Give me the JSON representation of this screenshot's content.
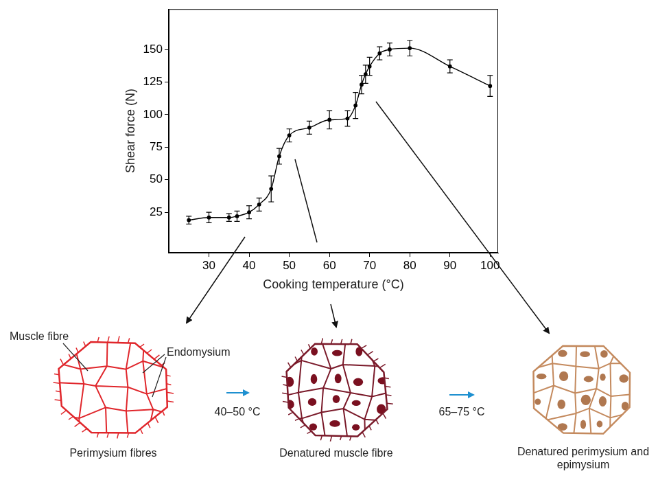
{
  "chart_data": {
    "type": "line",
    "x_label": "Cooking temperature (°C)",
    "y_label": "Shear force (N)",
    "x": [
      25,
      30,
      35,
      37,
      40,
      42.5,
      45.5,
      47.5,
      50,
      55,
      60,
      64.5,
      66.5,
      68,
      69,
      70,
      72.5,
      75,
      80,
      90,
      100
    ],
    "values": [
      19,
      21,
      21,
      22,
      25,
      31,
      43,
      68,
      84,
      90,
      96,
      97,
      107,
      123,
      131,
      137,
      147,
      150,
      151,
      137,
      122
    ],
    "errors": [
      3,
      4,
      3,
      4,
      5,
      5,
      10,
      6,
      5,
      5,
      7,
      6,
      10,
      7,
      7,
      7,
      5,
      5,
      6,
      5,
      8
    ],
    "color": "#000000",
    "marker": "circle",
    "line_style": "solid",
    "xlim": [
      20,
      102
    ],
    "xticks": [
      30,
      40,
      50,
      60,
      70,
      80,
      90,
      100
    ],
    "ylim": [
      -6,
      181
    ],
    "yticks": [
      25,
      50,
      75,
      100,
      125,
      150
    ],
    "grid": false
  },
  "diagram": {
    "stages": [
      {
        "label": "Perimysium fibres",
        "annotations": [
          "Muscle fibre",
          "Endomysium"
        ]
      },
      {
        "label": "Denatured muscle fibre"
      },
      {
        "label": "Denatured perimysium and epimysium"
      }
    ],
    "transitions": [
      "40–50 °C",
      "65–75 °C"
    ]
  }
}
